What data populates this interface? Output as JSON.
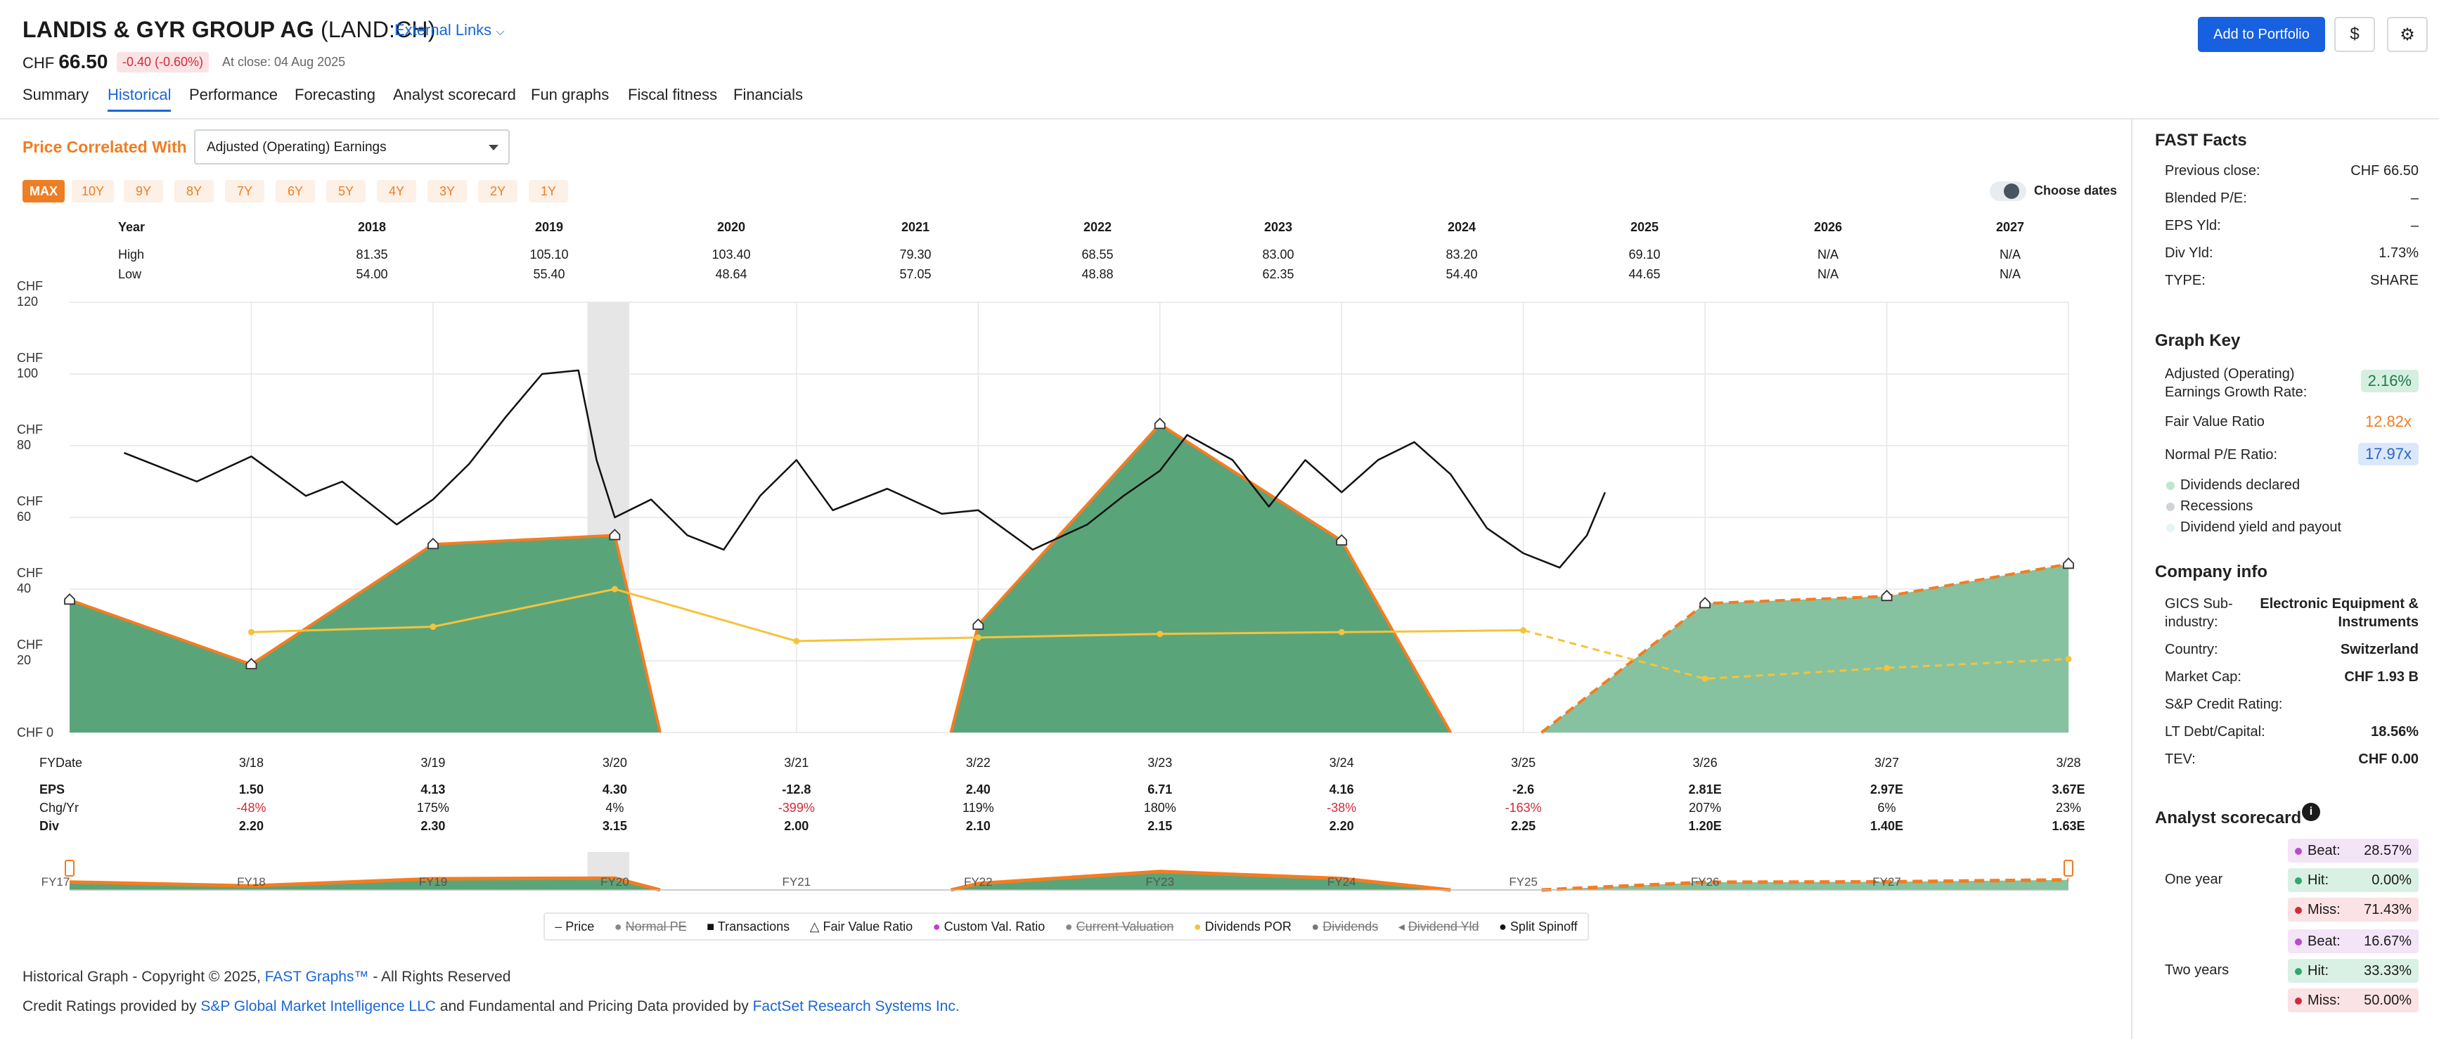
{
  "header": {
    "company": "LANDIS & GYR GROUP AG",
    "ticker": "(LAND:CH)",
    "external_links": "External Links",
    "currency": "CHF",
    "price": "66.50",
    "change": "-0.40 (-0.60%)",
    "close_text": "At close: 04 Aug 2025",
    "add_portfolio": "Add to Portfolio",
    "dollar_icon": "$",
    "tabs": [
      "Summary",
      "Historical",
      "Performance",
      "Forecasting",
      "Analyst scorecard",
      "Fun graphs",
      "Fiscal fitness",
      "Financials"
    ],
    "active_tab": "Historical"
  },
  "controls": {
    "price_correlated_label": "Price Correlated With",
    "select_value": "Adjusted (Operating) Earnings",
    "ranges": [
      "MAX",
      "10Y",
      "9Y",
      "8Y",
      "7Y",
      "6Y",
      "5Y",
      "4Y",
      "3Y",
      "2Y",
      "1Y"
    ],
    "active_range": "MAX",
    "choose_dates": "Choose dates"
  },
  "year_table": {
    "labels": {
      "year": "Year",
      "high": "High",
      "low": "Low"
    },
    "years": [
      "2018",
      "2019",
      "2020",
      "2021",
      "2022",
      "2023",
      "2024",
      "2025",
      "2026",
      "2027"
    ],
    "high": [
      "81.35",
      "105.10",
      "103.40",
      "79.30",
      "68.55",
      "83.00",
      "83.20",
      "69.10",
      "N/A",
      "N/A"
    ],
    "low": [
      "54.00",
      "55.40",
      "48.64",
      "57.05",
      "48.88",
      "62.35",
      "54.40",
      "44.65",
      "N/A",
      "N/A"
    ]
  },
  "chart_data": {
    "type": "area",
    "y_axis_ticks": [
      "CHF 120",
      "CHF 100",
      "CHF 80",
      "CHF 60",
      "CHF 40",
      "CHF 20",
      "CHF 0"
    ],
    "ylim": [
      0,
      120
    ],
    "fy_label": "FYDate",
    "fy_dates": [
      "3/18",
      "3/19",
      "3/20",
      "3/21",
      "3/22",
      "3/23",
      "3/24",
      "3/25",
      "3/26",
      "3/27",
      "3/28"
    ],
    "row_labels": {
      "eps": "EPS",
      "chg": "Chg/Yr",
      "div": "Div"
    },
    "eps": [
      "1.50",
      "4.13",
      "4.30",
      "-12.8",
      "2.40",
      "6.71",
      "4.16",
      "-2.6",
      "2.81E",
      "2.97E",
      "3.67E"
    ],
    "chg_yr": [
      "-48%",
      "175%",
      "4%",
      "-399%",
      "119%",
      "180%",
      "-38%",
      "-163%",
      "207%",
      "6%",
      "23%"
    ],
    "chg_negative": [
      true,
      false,
      false,
      true,
      false,
      false,
      true,
      true,
      false,
      false,
      false
    ],
    "div": [
      "2.20",
      "2.30",
      "3.15",
      "2.00",
      "2.10",
      "2.15",
      "2.20",
      "2.25",
      "1.20E",
      "1.40E",
      "1.63E"
    ],
    "fair_value_series": [
      {
        "x": 2017.0,
        "y": 37
      },
      {
        "x": 2018.0,
        "y": 19
      },
      {
        "x": 2019.0,
        "y": 52.5
      },
      {
        "x": 2020.0,
        "y": 55
      },
      {
        "x": 2020.25,
        "y": 0
      },
      {
        "x": 2021.85,
        "y": 0
      },
      {
        "x": 2022.0,
        "y": 30
      },
      {
        "x": 2023.0,
        "y": 86
      },
      {
        "x": 2024.0,
        "y": 53.5
      },
      {
        "x": 2024.6,
        "y": 0
      }
    ],
    "estimate_series": [
      {
        "x": 2025.1,
        "y": 0
      },
      {
        "x": 2026.0,
        "y": 36
      },
      {
        "x": 2027.0,
        "y": 38
      },
      {
        "x": 2028.0,
        "y": 47
      }
    ],
    "dividend_por": [
      {
        "x": 2018.0,
        "y": 28
      },
      {
        "x": 2019.0,
        "y": 29.5
      },
      {
        "x": 2020.0,
        "y": 40
      },
      {
        "x": 2021.0,
        "y": 25.5
      },
      {
        "x": 2022.0,
        "y": 26.5
      },
      {
        "x": 2023.0,
        "y": 27.5
      },
      {
        "x": 2024.0,
        "y": 28
      },
      {
        "x": 2025.0,
        "y": 28.5
      },
      {
        "x": 2026.0,
        "y": 15
      },
      {
        "x": 2027.0,
        "y": 18
      },
      {
        "x": 2028.0,
        "y": 20.5
      }
    ],
    "price_series": [
      {
        "x": 2017.3,
        "y": 78
      },
      {
        "x": 2017.5,
        "y": 74
      },
      {
        "x": 2017.7,
        "y": 70
      },
      {
        "x": 2018.0,
        "y": 77
      },
      {
        "x": 2018.3,
        "y": 66
      },
      {
        "x": 2018.5,
        "y": 70
      },
      {
        "x": 2018.8,
        "y": 58
      },
      {
        "x": 2019.0,
        "y": 65
      },
      {
        "x": 2019.2,
        "y": 75
      },
      {
        "x": 2019.4,
        "y": 88
      },
      {
        "x": 2019.6,
        "y": 100
      },
      {
        "x": 2019.8,
        "y": 101
      },
      {
        "x": 2019.9,
        "y": 76
      },
      {
        "x": 2020.0,
        "y": 60
      },
      {
        "x": 2020.2,
        "y": 65
      },
      {
        "x": 2020.4,
        "y": 55
      },
      {
        "x": 2020.6,
        "y": 51
      },
      {
        "x": 2020.8,
        "y": 66
      },
      {
        "x": 2021.0,
        "y": 76
      },
      {
        "x": 2021.2,
        "y": 62
      },
      {
        "x": 2021.5,
        "y": 68
      },
      {
        "x": 2021.8,
        "y": 61
      },
      {
        "x": 2022.0,
        "y": 62
      },
      {
        "x": 2022.3,
        "y": 51
      },
      {
        "x": 2022.6,
        "y": 58
      },
      {
        "x": 2022.8,
        "y": 66
      },
      {
        "x": 2023.0,
        "y": 73
      },
      {
        "x": 2023.15,
        "y": 83
      },
      {
        "x": 2023.4,
        "y": 76
      },
      {
        "x": 2023.6,
        "y": 63
      },
      {
        "x": 2023.8,
        "y": 76
      },
      {
        "x": 2024.0,
        "y": 67
      },
      {
        "x": 2024.2,
        "y": 76
      },
      {
        "x": 2024.4,
        "y": 81
      },
      {
        "x": 2024.6,
        "y": 72
      },
      {
        "x": 2024.8,
        "y": 57
      },
      {
        "x": 2025.0,
        "y": 50
      },
      {
        "x": 2025.2,
        "y": 46
      },
      {
        "x": 2025.35,
        "y": 55
      },
      {
        "x": 2025.45,
        "y": 67
      }
    ],
    "recession_band": {
      "x_start": 2019.85,
      "x_end": 2020.08
    },
    "sub_fy_labels": [
      "FY17",
      "FY18",
      "FY19",
      "FY20",
      "FY21",
      "FY22",
      "FY23",
      "FY24",
      "FY25",
      "FY26",
      "FY27"
    ],
    "legend": [
      {
        "label": "Price",
        "active": true
      },
      {
        "label": "Normal PE",
        "active": false
      },
      {
        "label": "Transactions",
        "active": true
      },
      {
        "label": "Fair Value Ratio",
        "active": true
      },
      {
        "label": "Custom Val. Ratio",
        "active": true
      },
      {
        "label": "Current Valuation",
        "active": false
      },
      {
        "label": "Dividends POR",
        "active": true
      },
      {
        "label": "Dividends",
        "active": false
      },
      {
        "label": "Dividend Yld",
        "active": false
      },
      {
        "label": "Split Spinoff",
        "active": true
      }
    ],
    "colors": {
      "area": "#5aa47a",
      "estimate": "#86c29f",
      "fair_value_line": "#f57c20",
      "price": "#111111",
      "dividend_por": "#f5c33b"
    }
  },
  "sidebar": {
    "fast_facts": {
      "title": "FAST Facts",
      "rows": [
        {
          "label": "Previous close:",
          "value": "CHF 66.50"
        },
        {
          "label": "Blended P/E:",
          "value": "–"
        },
        {
          "label": "EPS Yld:",
          "value": "–"
        },
        {
          "label": "Div Yld:",
          "value": "1.73%"
        },
        {
          "label": "TYPE:",
          "value": "SHARE"
        }
      ]
    },
    "graph_key": {
      "title": "Graph Key",
      "growth_label": "Adjusted (Operating) Earnings Growth Rate:",
      "growth_value": "2.16%",
      "fair_value_label": "Fair Value Ratio",
      "fair_value_value": "12.82x",
      "normal_pe_label": "Normal P/E Ratio:",
      "normal_pe_value": "17.97x",
      "legend": [
        "Dividends declared",
        "Recessions",
        "Dividend yield and payout"
      ]
    },
    "company_info": {
      "title": "Company info",
      "rows": [
        {
          "label": "GICS Sub-industry:",
          "value": "Electronic Equipment & Instruments"
        },
        {
          "label": "Country:",
          "value": "Switzerland"
        },
        {
          "label": "Market Cap:",
          "value": "CHF 1.93 B"
        },
        {
          "label": "S&P Credit Rating:",
          "value": ""
        },
        {
          "label": "LT Debt/Capital:",
          "value": "18.56%"
        },
        {
          "label": "TEV:",
          "value": "CHF 0.00"
        }
      ]
    },
    "analyst_scorecard": {
      "title": "Analyst scorecard",
      "one_year": {
        "label": "One year",
        "beat": "28.57%",
        "hit": "0.00%",
        "miss": "71.43%"
      },
      "two_years": {
        "label": "Two years",
        "beat": "16.67%",
        "hit": "33.33%",
        "miss": "50.00%"
      },
      "beat_label": "Beat:",
      "hit_label": "Hit:",
      "miss_label": "Miss:"
    }
  },
  "footer": {
    "line1_pre": "Historical Graph - Copyright © 2025,",
    "line1_link": "FAST Graphs™",
    "line1_post": "- All Rights Reserved",
    "line2_pre": "Credit Ratings provided by",
    "line2_link1": "S&P Global Market Intelligence LLC",
    "line2_mid": "and Fundamental and Pricing Data provided by",
    "line2_link2": "FactSet Research Systems Inc."
  }
}
